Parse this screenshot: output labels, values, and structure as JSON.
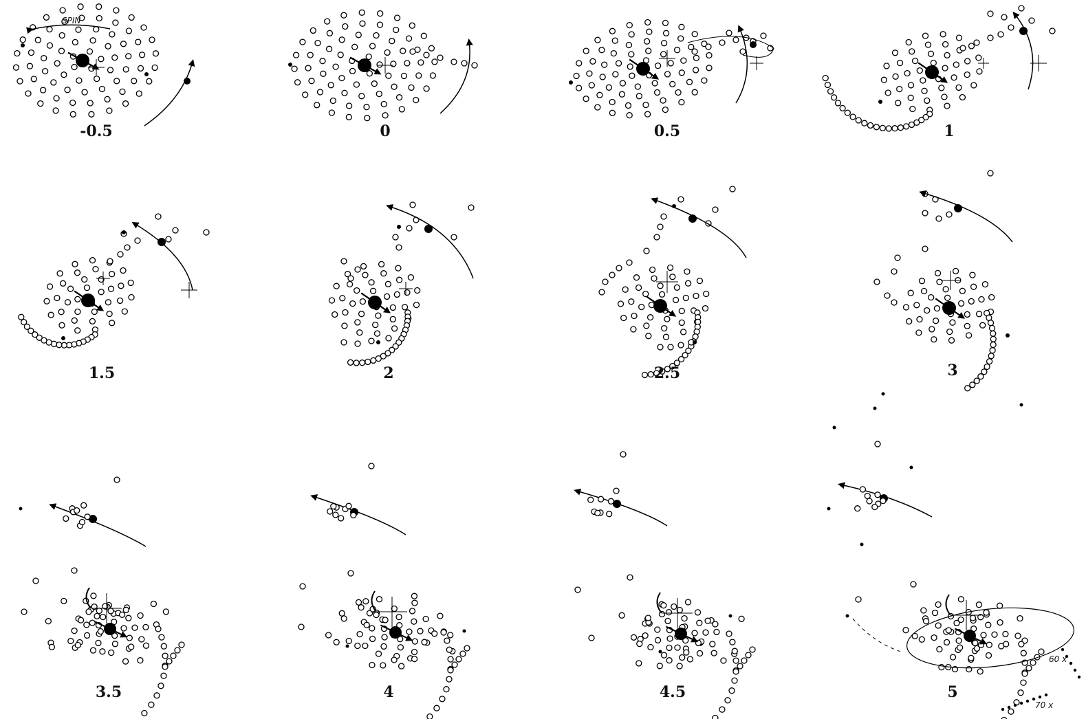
{
  "figure": {
    "spin_label": "SPIN",
    "panels": [
      {
        "label": "-0.5"
      },
      {
        "label": "0"
      },
      {
        "label": "0.5"
      },
      {
        "label": "1"
      },
      {
        "label": "1.5"
      },
      {
        "label": "2"
      },
      {
        "label": "2.5"
      },
      {
        "label": "3"
      },
      {
        "label": "3.5"
      },
      {
        "label": "4"
      },
      {
        "label": "4.5"
      },
      {
        "label": "5"
      }
    ],
    "annotations": {
      "label_60": "60 x",
      "label_70": "70 x"
    }
  }
}
